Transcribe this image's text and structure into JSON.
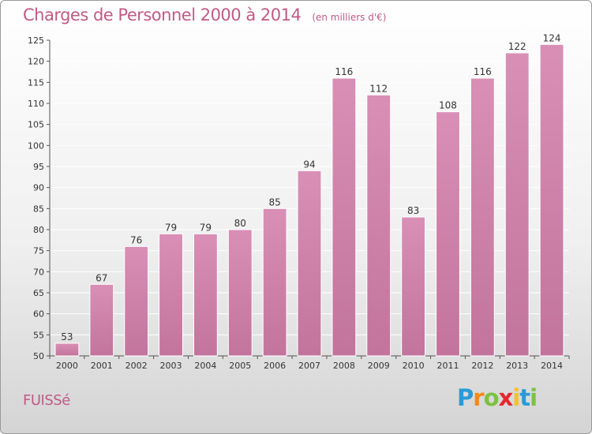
{
  "header": {
    "title": "Charges de Personnel 2000 à 2014",
    "subtitle": "(en milliers d'€)"
  },
  "footer": {
    "commune": "FUISSé",
    "logo_letters": [
      "P",
      "r",
      "o",
      "x",
      "i",
      "t",
      "i"
    ],
    "logo_colors": [
      "#2a9ad6",
      "#f08a1c",
      "#7cc242",
      "#e8262d",
      "#f2c12e",
      "#2a9ad6",
      "#7cc242"
    ]
  },
  "colors": {
    "bar": "#d98fb6",
    "bar_dark": "#c2749c",
    "grid": "#ffffff",
    "accent": "#c05a86"
  },
  "chart_data": {
    "type": "bar",
    "categories": [
      "2000",
      "2001",
      "2002",
      "2003",
      "2004",
      "2005",
      "2006",
      "2007",
      "2008",
      "2009",
      "2010",
      "2011",
      "2012",
      "2013",
      "2014"
    ],
    "values": [
      53,
      67,
      76,
      79,
      79,
      80,
      85,
      94,
      116,
      112,
      83,
      108,
      116,
      122,
      124
    ],
    "title": "Charges de Personnel 2000 à 2014",
    "subtitle": "(en milliers d'€)",
    "xlabel": "",
    "ylabel": "",
    "ylim": [
      50,
      125
    ],
    "yticks": [
      50,
      55,
      60,
      65,
      70,
      75,
      80,
      85,
      90,
      95,
      100,
      105,
      110,
      115,
      120,
      125
    ],
    "grid": true,
    "data_labels": true
  }
}
